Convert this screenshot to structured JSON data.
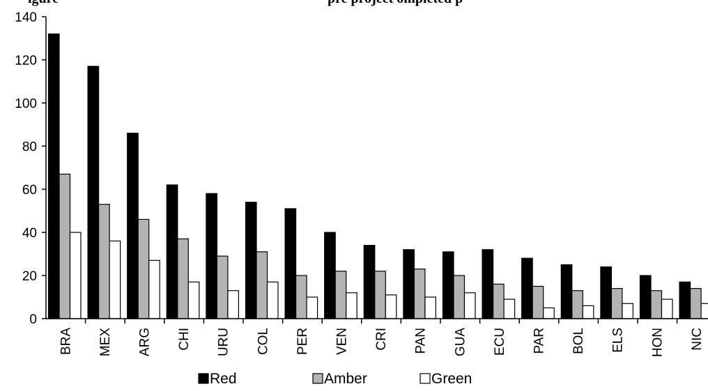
{
  "chart_data": {
    "type": "bar",
    "title": "igure",
    "title_suffix": "pre project  ompleted p",
    "categories": [
      "BRA",
      "MEX",
      "ARG",
      "CHI",
      "URU",
      "COL",
      "PER",
      "VEN",
      "CRI",
      "PAN",
      "GUA",
      "ECU",
      "PAR",
      "BOL",
      "ELS",
      "HON",
      "NIC"
    ],
    "series": [
      {
        "name": "Red",
        "color": "#000000",
        "values": [
          132,
          117,
          86,
          62,
          58,
          54,
          51,
          40,
          34,
          32,
          31,
          32,
          28,
          25,
          24,
          20,
          17
        ]
      },
      {
        "name": "Amber",
        "color": "#b3b3b3",
        "values": [
          67,
          53,
          46,
          37,
          29,
          31,
          20,
          22,
          22,
          23,
          20,
          16,
          15,
          13,
          14,
          13,
          14
        ]
      },
      {
        "name": "Green",
        "color": "#ffffff",
        "values": [
          40,
          36,
          27,
          17,
          13,
          17,
          10,
          12,
          11,
          10,
          12,
          9,
          5,
          6,
          7,
          9,
          7
        ]
      }
    ],
    "ylim": [
      0,
      140
    ],
    "yticks": [
      0,
      20,
      40,
      60,
      80,
      100,
      120,
      140
    ],
    "xlabel": "",
    "ylabel": "",
    "grid": false,
    "legend_position": "bottom-center"
  }
}
